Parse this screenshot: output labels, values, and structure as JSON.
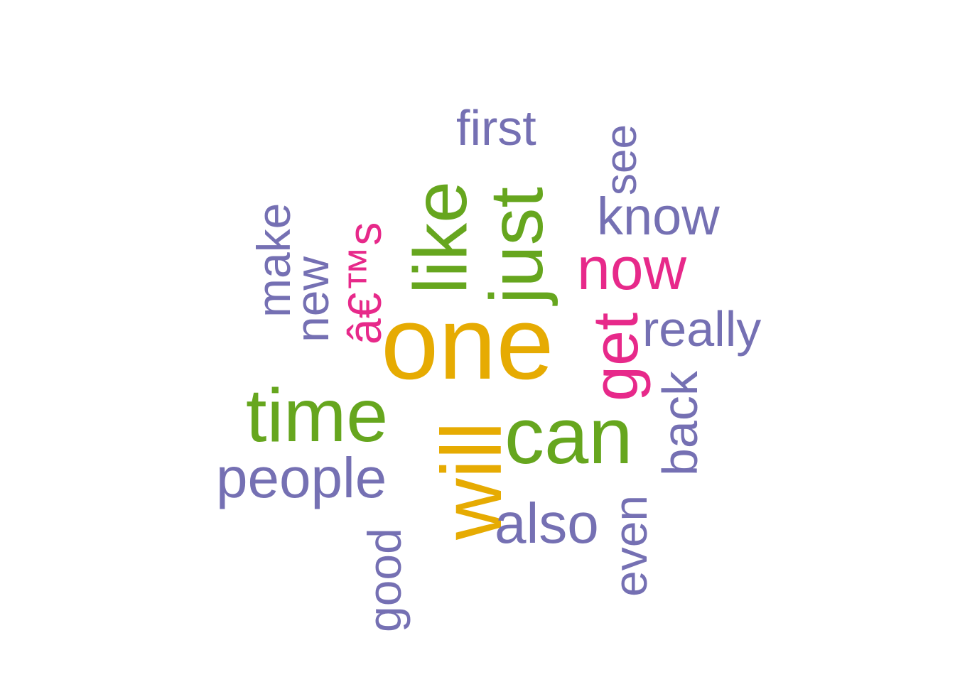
{
  "colors": {
    "gold": "#e6ab02",
    "green": "#66a61e",
    "pink": "#e7298a",
    "purple": "#7570b3"
  },
  "words": [
    {
      "text": "one",
      "color": "gold",
      "rotated": false
    },
    {
      "text": "will",
      "color": "gold",
      "rotated": true
    },
    {
      "text": "just",
      "color": "green",
      "rotated": true
    },
    {
      "text": "like",
      "color": "green",
      "rotated": true
    },
    {
      "text": "can",
      "color": "green",
      "rotated": false
    },
    {
      "text": "time",
      "color": "green",
      "rotated": false
    },
    {
      "text": "â€™s",
      "color": "pink",
      "rotated": true
    },
    {
      "text": "get",
      "color": "pink",
      "rotated": true
    },
    {
      "text": "now",
      "color": "pink",
      "rotated": false
    },
    {
      "text": "people",
      "color": "purple",
      "rotated": false
    },
    {
      "text": "also",
      "color": "purple",
      "rotated": false
    },
    {
      "text": "know",
      "color": "purple",
      "rotated": false
    },
    {
      "text": "really",
      "color": "purple",
      "rotated": false
    },
    {
      "text": "first",
      "color": "purple",
      "rotated": false
    },
    {
      "text": "make",
      "color": "purple",
      "rotated": true
    },
    {
      "text": "new",
      "color": "purple",
      "rotated": true
    },
    {
      "text": "see",
      "color": "purple",
      "rotated": true
    },
    {
      "text": "back",
      "color": "purple",
      "rotated": true
    },
    {
      "text": "even",
      "color": "purple",
      "rotated": true
    },
    {
      "text": "good",
      "color": "purple",
      "rotated": true
    }
  ]
}
